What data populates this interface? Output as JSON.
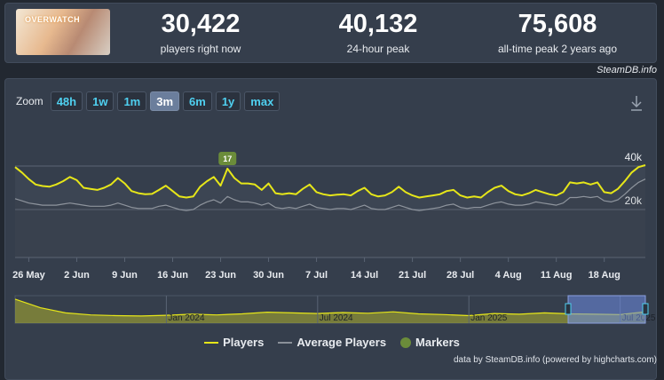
{
  "header": {
    "game_logo": "OVERWATCH",
    "stats": [
      {
        "value": "30,422",
        "label": "players right now"
      },
      {
        "value": "40,132",
        "label": "24-hour peak"
      },
      {
        "value": "75,608",
        "label": "all-time peak 2 years ago"
      }
    ],
    "credit": "SteamDB.info"
  },
  "toolbar": {
    "zoom_label": "Zoom",
    "buttons": [
      "48h",
      "1w",
      "1m",
      "3m",
      "6m",
      "1y",
      "max"
    ],
    "active": "3m"
  },
  "chart_data": {
    "type": "line",
    "x": [
      "24 May",
      "25 May",
      "26 May",
      "27 May",
      "28 May",
      "29 May",
      "30 May",
      "31 May",
      "1 Jun",
      "2 Jun",
      "3 Jun",
      "4 Jun",
      "5 Jun",
      "6 Jun",
      "7 Jun",
      "8 Jun",
      "9 Jun",
      "10 Jun",
      "11 Jun",
      "12 Jun",
      "13 Jun",
      "14 Jun",
      "15 Jun",
      "16 Jun",
      "17 Jun",
      "18 Jun",
      "19 Jun",
      "20 Jun",
      "21 Jun",
      "22 Jun",
      "23 Jun",
      "24 Jun",
      "25 Jun",
      "26 Jun",
      "27 Jun",
      "28 Jun",
      "29 Jun",
      "30 Jun",
      "1 Jul",
      "2 Jul",
      "3 Jul",
      "4 Jul",
      "5 Jul",
      "6 Jul",
      "7 Jul",
      "8 Jul",
      "9 Jul",
      "10 Jul",
      "11 Jul",
      "12 Jul",
      "13 Jul",
      "14 Jul",
      "15 Jul",
      "16 Jul",
      "17 Jul",
      "18 Jul",
      "19 Jul",
      "20 Jul",
      "21 Jul",
      "22 Jul",
      "23 Jul",
      "24 Jul",
      "25 Jul",
      "26 Jul",
      "27 Jul",
      "28 Jul",
      "29 Jul",
      "30 Jul",
      "31 Jul",
      "1 Aug",
      "2 Aug",
      "3 Aug",
      "4 Aug",
      "5 Aug",
      "6 Aug",
      "7 Aug",
      "8 Aug",
      "9 Aug",
      "10 Aug",
      "11 Aug",
      "12 Aug",
      "13 Aug",
      "14 Aug",
      "15 Aug",
      "16 Aug",
      "17 Aug",
      "18 Aug",
      "19 Aug",
      "20 Aug",
      "21 Aug",
      "22 Aug",
      "23 Aug",
      "24 Aug"
    ],
    "series": [
      {
        "name": "Players",
        "color": "#e6e619",
        "values": [
          39500,
          37000,
          34000,
          31500,
          30800,
          30500,
          31500,
          33000,
          35000,
          33500,
          30000,
          29500,
          29000,
          30000,
          31500,
          34500,
          32000,
          28500,
          27500,
          27000,
          27200,
          29000,
          31000,
          28500,
          26000,
          25500,
          26000,
          30500,
          33000,
          35000,
          31000,
          38800,
          34500,
          32000,
          32000,
          31500,
          29000,
          32000,
          27500,
          27000,
          27500,
          27000,
          29500,
          31500,
          28000,
          27000,
          26500,
          26800,
          27000,
          26500,
          28500,
          30000,
          27000,
          26000,
          26500,
          28000,
          30500,
          28000,
          26500,
          25500,
          26000,
          26500,
          27000,
          28500,
          29000,
          26500,
          25500,
          26000,
          25500,
          28000,
          30000,
          31000,
          28500,
          27000,
          26500,
          27500,
          29000,
          28000,
          27000,
          26500,
          28000,
          32500,
          32000,
          32500,
          31500,
          32500,
          28000,
          27500,
          29500,
          33000,
          37000,
          39500,
          40400
        ]
      },
      {
        "name": "Average Players",
        "color": "#8a9099",
        "values": [
          25000,
          24000,
          23000,
          22500,
          22000,
          22000,
          22000,
          22500,
          23000,
          22500,
          22000,
          21500,
          21500,
          21500,
          22000,
          23000,
          22000,
          21000,
          20500,
          20500,
          20500,
          21500,
          22000,
          21000,
          20000,
          19500,
          20000,
          22000,
          23500,
          24500,
          23000,
          26000,
          24500,
          23500,
          23500,
          23000,
          22000,
          23000,
          21000,
          20500,
          21000,
          20500,
          21500,
          22500,
          21000,
          20500,
          20000,
          20500,
          20500,
          20000,
          21000,
          22000,
          20500,
          20000,
          20000,
          21000,
          22000,
          21000,
          20000,
          19500,
          20000,
          20500,
          21000,
          22000,
          22500,
          21000,
          20500,
          21000,
          21000,
          22000,
          23000,
          23500,
          22500,
          22000,
          22000,
          22500,
          23500,
          23000,
          22500,
          22000,
          23000,
          25500,
          25500,
          26000,
          25500,
          26000,
          24000,
          23500,
          24500,
          27000,
          30000,
          32500,
          34000
        ]
      }
    ],
    "markers": {
      "name": "Markers",
      "color": "#6b8c3a",
      "points": [
        {
          "x": "24 Jun",
          "label": "17"
        }
      ]
    },
    "xticks": [
      "26 May",
      "2 Jun",
      "9 Jun",
      "16 Jun",
      "23 Jun",
      "30 Jun",
      "7 Jul",
      "14 Jul",
      "21 Jul",
      "28 Jul",
      "4 Aug",
      "11 Aug",
      "18 Aug"
    ],
    "ylim": [
      0,
      60000
    ],
    "yticks": [
      {
        "value": 20000,
        "label": "20k"
      },
      {
        "value": 40000,
        "label": "40k"
      }
    ],
    "grid": true,
    "navigator": {
      "x": [
        "Jul 2023",
        "Aug 2023",
        "Sep 2023",
        "Oct 2023",
        "Nov 2023",
        "Dec 2023",
        "Jan 2024",
        "Feb 2024",
        "Mar 2024",
        "Apr 2024",
        "May 2024",
        "Jun 2024",
        "Jul 2024",
        "Aug 2024",
        "Sep 2024",
        "Oct 2024",
        "Nov 2024",
        "Dec 2024",
        "Jan 2025",
        "Feb 2025",
        "Mar 2025",
        "Apr 2025",
        "May 2025",
        "Jun 2025",
        "Jul 2025",
        "Aug 2025"
      ],
      "values": [
        70000,
        45000,
        30000,
        24000,
        22000,
        21000,
        23000,
        26000,
        24000,
        27000,
        32000,
        30000,
        28000,
        31000,
        29000,
        33000,
        27000,
        25000,
        22000,
        28000,
        26000,
        30000,
        27000,
        26000,
        25000,
        33000
      ],
      "ylim": [
        0,
        80000
      ],
      "xticks": [
        "Jan 2024",
        "Jul 2024",
        "Jan 2025",
        "Jul 2025"
      ]
    }
  },
  "footer": "data by SteamDB.info (powered by highcharts.com)"
}
